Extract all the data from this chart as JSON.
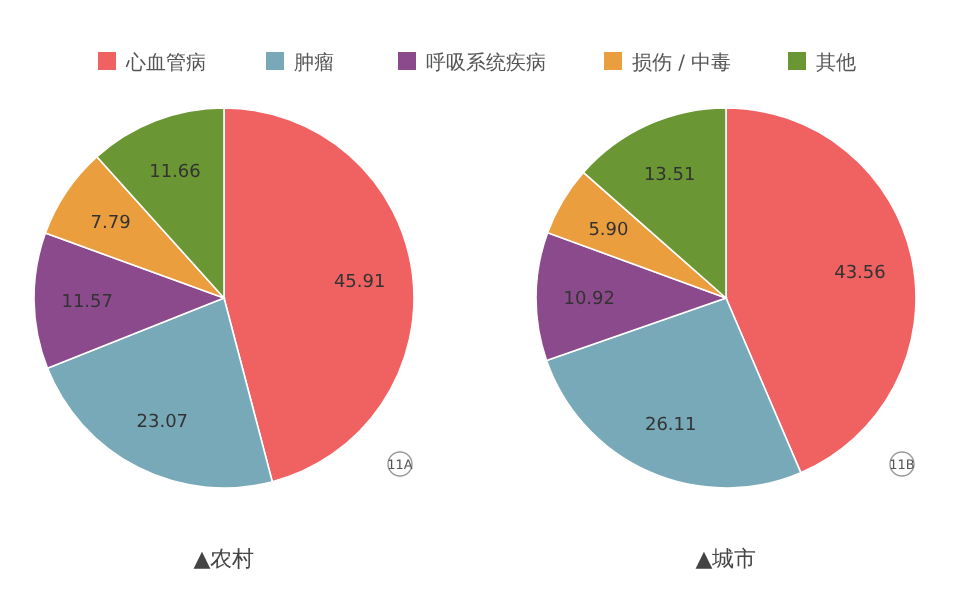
{
  "chart_data": [
    {
      "type": "pie",
      "title": "▲农村",
      "categories": [
        "心血管病",
        "肿瘤",
        "呼吸系统疾病",
        "损伤 / 中毒",
        "其他"
      ],
      "values": [
        45.91,
        23.07,
        11.57,
        7.79,
        11.66
      ],
      "value_labels": [
        "45.91",
        "23.07",
        "11.57",
        "7.79",
        "11.66"
      ],
      "colors": [
        "#f06262",
        "#78a9b8",
        "#8b4a8b",
        "#eb9e3e",
        "#6b9634"
      ],
      "legend": "top",
      "annotations": [
        "11A"
      ]
    },
    {
      "type": "pie",
      "title": "▲城市",
      "categories": [
        null,
        null,
        null,
        null,
        null
      ],
      "values": [
        43.56,
        26.11,
        10.92,
        5.9,
        13.51
      ],
      "value_labels": [
        "43.56",
        "26.11",
        "10.92",
        "5.90",
        "13.51"
      ],
      "colors": [
        "#f06262",
        "#78a9b8",
        "#8b4a8b",
        "#eb9e3e",
        "#6b9634"
      ],
      "annotations": [
        "11B"
      ]
    }
  ]
}
